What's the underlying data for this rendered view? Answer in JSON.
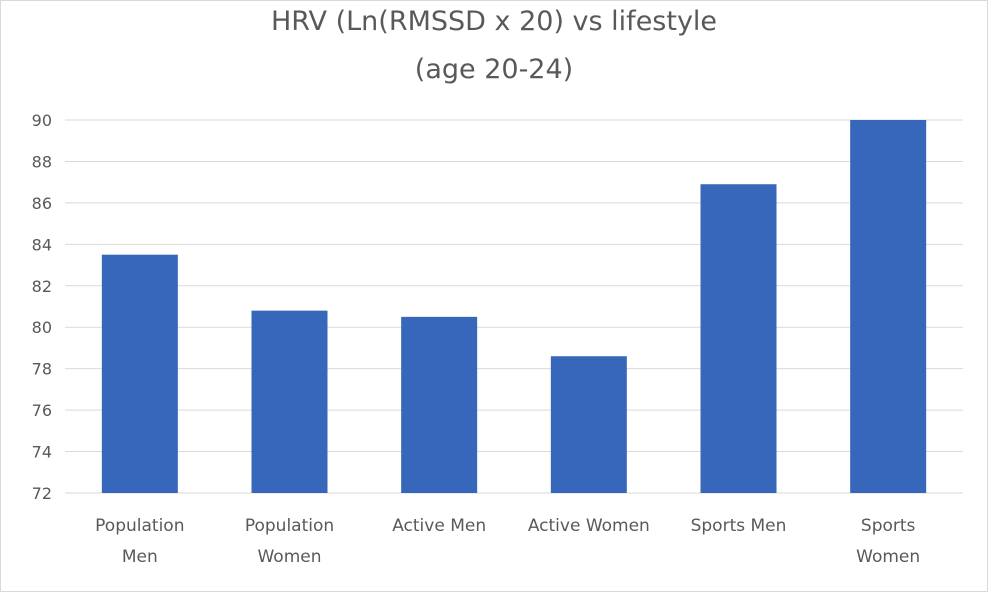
{
  "chart_data": {
    "type": "bar",
    "title_lines": [
      "HRV (Ln(RMSSD x 20) vs lifestyle",
      "(age 20-24)"
    ],
    "categories": [
      [
        "Population",
        "Men"
      ],
      [
        "Population",
        "Women"
      ],
      [
        "Active Men"
      ],
      [
        "Active Women"
      ],
      [
        "Sports Men"
      ],
      [
        "Sports",
        "Women"
      ]
    ],
    "values": [
      83.5,
      80.8,
      80.5,
      78.6,
      86.9,
      90.0
    ],
    "xlabel": "",
    "ylabel": "",
    "ylim": [
      72,
      90
    ],
    "yticks": [
      "72",
      "74",
      "76",
      "78",
      "80",
      "82",
      "84",
      "86",
      "88",
      "90"
    ],
    "grid": true,
    "legend": "none",
    "colors": {
      "bar": "#3767BA",
      "grid": "#D9D9D9",
      "text": "#595959"
    }
  }
}
